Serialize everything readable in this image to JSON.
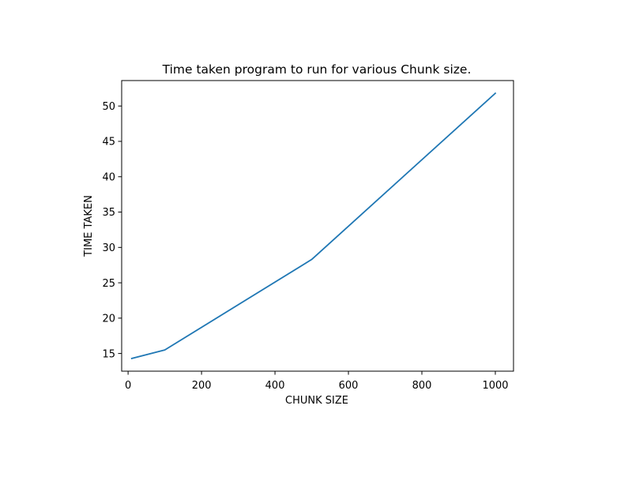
{
  "chart_data": {
    "type": "line",
    "title": "Time taken program to run for various Chunk size.",
    "xlabel": "CHUNK SIZE",
    "ylabel": "TIME TAKEN",
    "xlim": [
      -17.5,
      1049.5
    ],
    "ylim": [
      12.5,
      53.6
    ],
    "x_ticks": [
      0,
      200,
      400,
      600,
      800,
      1000
    ],
    "y_ticks": [
      15,
      20,
      25,
      30,
      35,
      40,
      45,
      50
    ],
    "grid": false,
    "legend": "none",
    "series": [
      {
        "color": "#1f77b4",
        "x": [
          10,
          100,
          500,
          1000
        ],
        "y": [
          14.3,
          15.5,
          28.3,
          51.8
        ]
      }
    ]
  }
}
